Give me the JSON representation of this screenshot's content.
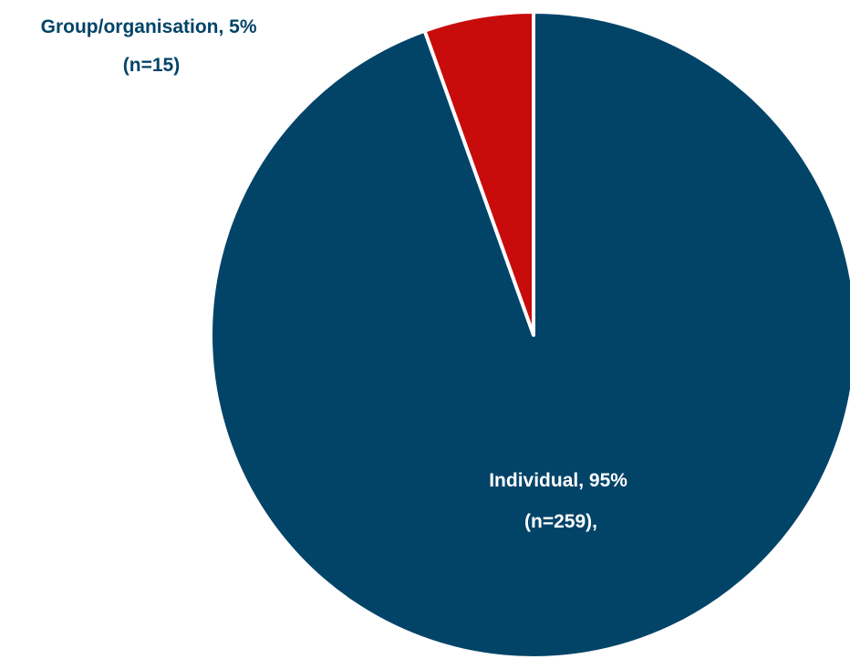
{
  "chart_data": {
    "type": "pie",
    "start": "12 o'clock",
    "direction": "clockwise",
    "slices": [
      {
        "name": "Individual",
        "percent": 95,
        "n": 259,
        "color": "#024468",
        "label_line1": "Individual, 95%",
        "label_line2": "(n=259),",
        "label_color": "#ffffff"
      },
      {
        "name": "Group/organisation",
        "percent": 5,
        "n": 15,
        "color": "#c80b0b",
        "label_line1": "Group/organisation, 5%",
        "label_line2": "(n=15)",
        "label_color": "#024468"
      }
    ],
    "slice_border_color": "#ffffff",
    "legend": "none"
  }
}
